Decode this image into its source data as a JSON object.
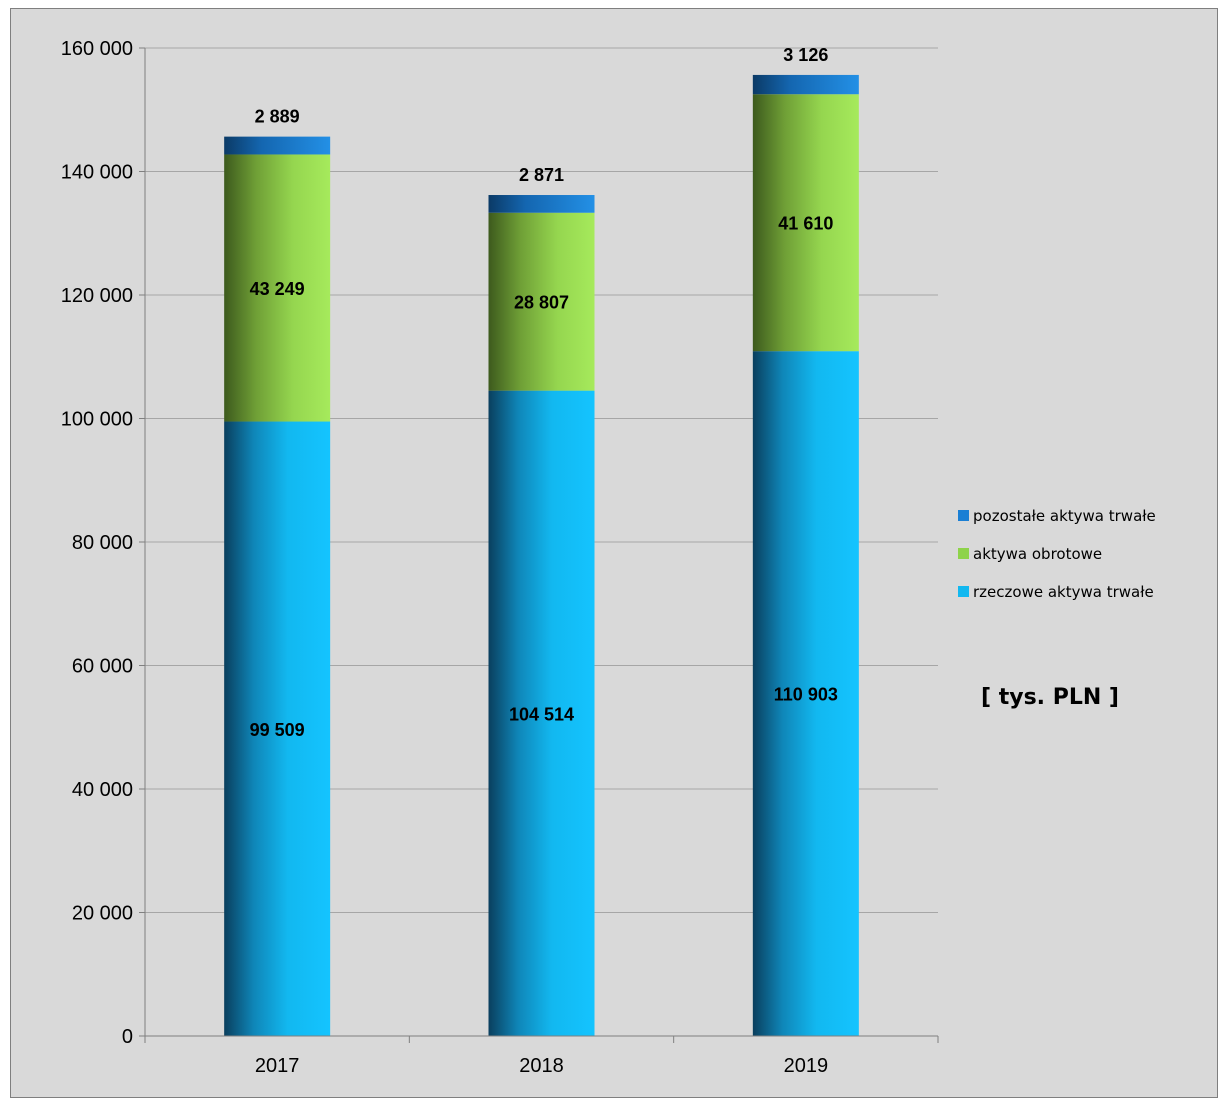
{
  "chart_data": {
    "type": "bar",
    "stacked": true,
    "categories": [
      "2017",
      "2018",
      "2019"
    ],
    "series": [
      {
        "name": "rzeczowe aktywa trwałe",
        "values": [
          99509,
          104514,
          110903
        ],
        "labels": [
          "99 509",
          "104 514",
          "110 903"
        ],
        "color": "#12b8f0"
      },
      {
        "name": "aktywa obrotowe",
        "values": [
          43249,
          28807,
          41610
        ],
        "labels": [
          "43 249",
          "28 807",
          "41 610"
        ],
        "color": "#8ed34a"
      },
      {
        "name": "pozostałe aktywa trwałe",
        "values": [
          2889,
          2871,
          3126
        ],
        "labels": [
          "2 889",
          "2 871",
          "3 126"
        ],
        "color": "#1a7fd4"
      }
    ],
    "ylim": [
      0,
      160000
    ],
    "yticks": [
      0,
      20000,
      40000,
      60000,
      80000,
      100000,
      120000,
      140000,
      160000
    ],
    "ytick_labels": [
      "0",
      "20 000",
      "40 000",
      "60 000",
      "80 000",
      "100 000",
      "120 000",
      "140 000",
      "160 000"
    ],
    "grid": true,
    "legend_position": "right",
    "legend_order": [
      "pozostałe aktywa trwałe",
      "aktywa obrotowe",
      "rzeczowe aktywa trwałe"
    ],
    "unit_label": "[ tys. PLN ]"
  }
}
